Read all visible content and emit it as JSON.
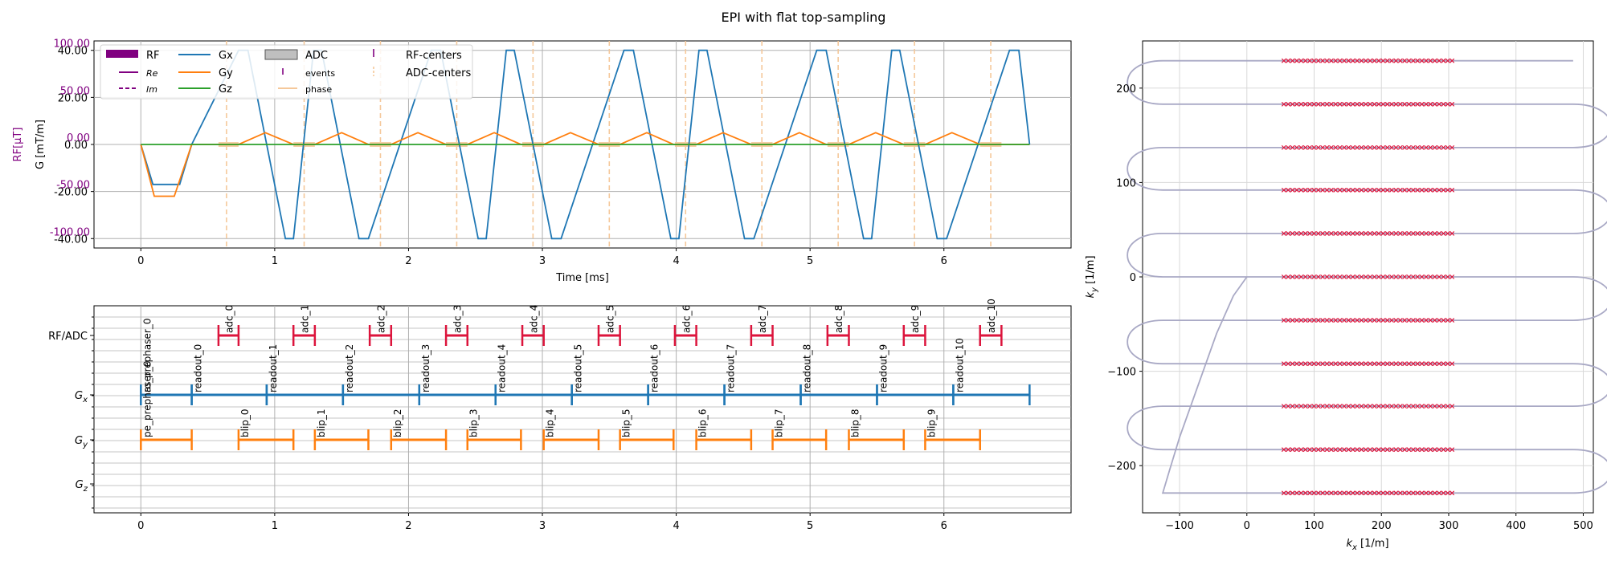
{
  "figure": {
    "suptitle": "EPI with flat top-sampling"
  },
  "chart_data": [
    {
      "id": "waveforms",
      "type": "line",
      "xlabel": "Time [ms]",
      "ylabel": "G [mT/m]",
      "ylabel2": "RF[μT]",
      "xlim": [
        -0.35,
        6.95
      ],
      "ylim": [
        -44,
        44
      ],
      "xticks": [
        0,
        1,
        2,
        3,
        4,
        5,
        6
      ],
      "yticks": [
        -40,
        -20,
        0,
        20,
        40
      ],
      "ytick_labels": [
        "-40.00",
        "-20.00",
        "0.00",
        "20.00",
        "40.00"
      ],
      "yticks2": [
        -100,
        -50,
        0,
        50,
        100
      ],
      "ytick2_labels": [
        "-100.00",
        "-50.00",
        "0.00",
        "50.00",
        "100.00"
      ],
      "grid": true,
      "legend_placement": "top-left",
      "legend": [
        {
          "label": "RF",
          "kind": "patch",
          "color": "#800080"
        },
        {
          "label": "Re",
          "kind": "line-small",
          "color": "#800080"
        },
        {
          "label": "Im",
          "kind": "dash-small",
          "color": "#800080"
        },
        {
          "label": "Gx",
          "kind": "line",
          "color": "#1f77b4"
        },
        {
          "label": "Gy",
          "kind": "line",
          "color": "#ff7f0e"
        },
        {
          "label": "Gz",
          "kind": "line",
          "color": "#2ca02c"
        },
        {
          "label": "ADC",
          "kind": "patch-gray",
          "color": "#bfbfbf"
        },
        {
          "label": "events",
          "kind": "tick-small",
          "color": "#800080"
        },
        {
          "label": "phase",
          "kind": "line-small",
          "color": "#f5c89a"
        },
        {
          "label": "RF-centers",
          "kind": "tick",
          "color": "#800080"
        },
        {
          "label": "ADC-centers",
          "kind": "dash-tick",
          "color": "#f5c89a"
        }
      ],
      "series": [
        {
          "name": "Gx",
          "color": "#1f77b4",
          "x": [
            0,
            0.09,
            0.29,
            0.38,
            0.73,
            0.8,
            1.08,
            1.14,
            1.29,
            1.35,
            1.63,
            1.7,
            2.17,
            2.24,
            2.52,
            2.58,
            2.73,
            2.79,
            3.07,
            3.14,
            3.61,
            3.68,
            3.96,
            4.02,
            4.17,
            4.23,
            4.51,
            4.58,
            5.05,
            5.12,
            5.4,
            5.46,
            5.61,
            5.67,
            5.95,
            6.02,
            6.49,
            6.56,
            6.64
          ],
          "y": [
            0,
            -17,
            -17,
            0,
            40,
            40,
            -40,
            -40,
            40,
            40,
            -40,
            -40,
            40,
            40,
            -40,
            -40,
            40,
            40,
            -40,
            -40,
            40,
            40,
            -40,
            -40,
            40,
            40,
            -40,
            -40,
            40,
            40,
            -40,
            -40,
            40,
            40,
            -40,
            -40,
            40,
            40,
            0
          ]
        },
        {
          "name": "Gy",
          "color": "#ff7f0e",
          "x": [
            0,
            0.1,
            0.25,
            0.38,
            0.38,
            0.73,
            0.93,
            1.14,
            1.3,
            1.5,
            1.7,
            1.87,
            2.07,
            2.28,
            2.44,
            2.64,
            2.84,
            3.01,
            3.21,
            3.42,
            3.58,
            3.78,
            3.98,
            4.15,
            4.35,
            4.56,
            4.72,
            4.92,
            5.12,
            5.29,
            5.49,
            5.7,
            5.86,
            6.06,
            6.27,
            6.64
          ],
          "y": [
            0,
            -22,
            -22,
            0,
            0,
            0,
            5,
            0,
            0,
            5,
            0,
            0,
            5,
            0,
            0,
            5,
            0,
            0,
            5,
            0,
            0,
            5,
            0,
            0,
            5,
            0,
            0,
            5,
            0,
            0,
            5,
            0,
            0,
            5,
            0,
            0
          ]
        },
        {
          "name": "Gz",
          "color": "#2ca02c",
          "x": [
            0,
            6.64
          ],
          "y": [
            0,
            0
          ]
        }
      ],
      "adc_blocks": [
        [
          0.58,
          0.73
        ],
        [
          1.14,
          1.3
        ],
        [
          1.71,
          1.87
        ],
        [
          2.28,
          2.44
        ],
        [
          2.85,
          3.01
        ],
        [
          3.42,
          3.58
        ],
        [
          3.99,
          4.15
        ],
        [
          4.56,
          4.72
        ],
        [
          5.13,
          5.29
        ],
        [
          5.7,
          5.86
        ],
        [
          6.27,
          6.43
        ]
      ],
      "adc_centers": [
        0.64,
        1.22,
        1.79,
        2.36,
        2.93,
        3.5,
        4.07,
        4.64,
        5.21,
        5.78,
        6.35
      ]
    },
    {
      "id": "timeline",
      "type": "timeline",
      "xlim": [
        -0.35,
        6.95
      ],
      "xticks": [
        0,
        1,
        2,
        3,
        4,
        5,
        6
      ],
      "rows": [
        "RF/ADC",
        "G_x",
        "G_y",
        "G_z"
      ],
      "row_labels": [
        {
          "main": "RF/ADC",
          "sub": ""
        },
        {
          "main": "G",
          "sub": "x"
        },
        {
          "main": "G",
          "sub": "y"
        },
        {
          "main": "G",
          "sub": "z"
        }
      ],
      "intervals": [
        {
          "row": 0,
          "start": 0.58,
          "end": 0.73,
          "label": "adc_0",
          "color": "#dc143c"
        },
        {
          "row": 0,
          "start": 1.14,
          "end": 1.3,
          "label": "adc_1",
          "color": "#dc143c"
        },
        {
          "row": 0,
          "start": 1.71,
          "end": 1.87,
          "label": "adc_2",
          "color": "#dc143c"
        },
        {
          "row": 0,
          "start": 2.28,
          "end": 2.44,
          "label": "adc_3",
          "color": "#dc143c"
        },
        {
          "row": 0,
          "start": 2.85,
          "end": 3.01,
          "label": "adc_4",
          "color": "#dc143c"
        },
        {
          "row": 0,
          "start": 3.42,
          "end": 3.58,
          "label": "adc_5",
          "color": "#dc143c"
        },
        {
          "row": 0,
          "start": 3.99,
          "end": 4.15,
          "label": "adc_6",
          "color": "#dc143c"
        },
        {
          "row": 0,
          "start": 4.56,
          "end": 4.72,
          "label": "adc_7",
          "color": "#dc143c"
        },
        {
          "row": 0,
          "start": 5.13,
          "end": 5.29,
          "label": "adc_8",
          "color": "#dc143c"
        },
        {
          "row": 0,
          "start": 5.7,
          "end": 5.86,
          "label": "adc_9",
          "color": "#dc143c"
        },
        {
          "row": 0,
          "start": 6.27,
          "end": 6.43,
          "label": "adc_10",
          "color": "#dc143c"
        },
        {
          "row": 1,
          "start": 0.0,
          "end": 0.38,
          "label": "ro_prephaser_0",
          "color": "#1f77b4"
        },
        {
          "row": 1,
          "start": 0.38,
          "end": 0.94,
          "label": "readout_0",
          "color": "#1f77b4"
        },
        {
          "row": 1,
          "start": 0.94,
          "end": 1.51,
          "label": "readout_1",
          "color": "#1f77b4"
        },
        {
          "row": 1,
          "start": 1.51,
          "end": 2.08,
          "label": "readout_2",
          "color": "#1f77b4"
        },
        {
          "row": 1,
          "start": 2.08,
          "end": 2.65,
          "label": "readout_3",
          "color": "#1f77b4"
        },
        {
          "row": 1,
          "start": 2.65,
          "end": 3.22,
          "label": "readout_4",
          "color": "#1f77b4"
        },
        {
          "row": 1,
          "start": 3.22,
          "end": 3.79,
          "label": "readout_5",
          "color": "#1f77b4"
        },
        {
          "row": 1,
          "start": 3.79,
          "end": 4.36,
          "label": "readout_6",
          "color": "#1f77b4"
        },
        {
          "row": 1,
          "start": 4.36,
          "end": 4.93,
          "label": "readout_7",
          "color": "#1f77b4"
        },
        {
          "row": 1,
          "start": 4.93,
          "end": 5.5,
          "label": "readout_8",
          "color": "#1f77b4"
        },
        {
          "row": 1,
          "start": 5.5,
          "end": 6.07,
          "label": "readout_9",
          "color": "#1f77b4"
        },
        {
          "row": 1,
          "start": 6.07,
          "end": 6.64,
          "label": "readout_10",
          "color": "#1f77b4"
        },
        {
          "row": 2,
          "start": 0.0,
          "end": 0.38,
          "label": "pe_prephaser_0",
          "color": "#ff7f0e"
        },
        {
          "row": 2,
          "start": 0.73,
          "end": 1.14,
          "label": "blip_0",
          "color": "#ff7f0e"
        },
        {
          "row": 2,
          "start": 1.3,
          "end": 1.7,
          "label": "blip_1",
          "color": "#ff7f0e"
        },
        {
          "row": 2,
          "start": 1.87,
          "end": 2.28,
          "label": "blip_2",
          "color": "#ff7f0e"
        },
        {
          "row": 2,
          "start": 2.44,
          "end": 2.84,
          "label": "blip_3",
          "color": "#ff7f0e"
        },
        {
          "row": 2,
          "start": 3.01,
          "end": 3.42,
          "label": "blip_4",
          "color": "#ff7f0e"
        },
        {
          "row": 2,
          "start": 3.58,
          "end": 3.98,
          "label": "blip_5",
          "color": "#ff7f0e"
        },
        {
          "row": 2,
          "start": 4.15,
          "end": 4.56,
          "label": "blip_6",
          "color": "#ff7f0e"
        },
        {
          "row": 2,
          "start": 4.72,
          "end": 5.12,
          "label": "blip_7",
          "color": "#ff7f0e"
        },
        {
          "row": 2,
          "start": 5.29,
          "end": 5.7,
          "label": "blip_8",
          "color": "#ff7f0e"
        },
        {
          "row": 2,
          "start": 5.86,
          "end": 6.27,
          "label": "blip_9",
          "color": "#ff7f0e"
        }
      ]
    },
    {
      "id": "kspace",
      "type": "line",
      "xlabel_main": "k",
      "xlabel_sub": "x",
      "xlabel_unit": " [1/m]",
      "ylabel_main": "k",
      "ylabel_sub": "y",
      "ylabel_unit": " [1/m]",
      "xlim": [
        -155,
        515
      ],
      "ylim": [
        -250,
        250
      ],
      "xticks": [
        -100,
        0,
        100,
        200,
        300,
        400,
        500
      ],
      "xtick_labels": [
        "−100",
        "0",
        "100",
        "200",
        "300",
        "400",
        "500"
      ],
      "yticks": [
        -200,
        -100,
        0,
        100,
        200
      ],
      "ytick_labels": [
        "−200",
        "−100",
        "0",
        "100",
        "200"
      ],
      "grid": true,
      "trajectory_color": "#a9a9c5",
      "marker_color": "#dc143c",
      "line_ky": [
        -229,
        -183,
        -137,
        -92,
        -46,
        0,
        46,
        92,
        137,
        183,
        229
      ],
      "line_kx_start": [
        -125,
        485,
        -125,
        485,
        -125,
        485,
        -125,
        485,
        -125,
        485,
        -125
      ],
      "line_kx_end": [
        485,
        -125,
        485,
        -125,
        485,
        -125,
        485,
        -125,
        485,
        -125,
        485
      ],
      "turn_extent_pos": 560,
      "turn_extent_neg": -195,
      "prephaser_path": {
        "x": [
          0,
          -20,
          -45,
          -70,
          -100,
          -115,
          -125
        ],
        "y": [
          0,
          -20,
          -60,
          -110,
          -170,
          -205,
          -229
        ]
      },
      "adc_kx_range": [
        55,
        305
      ],
      "adc_samples_per_line": 40
    }
  ]
}
